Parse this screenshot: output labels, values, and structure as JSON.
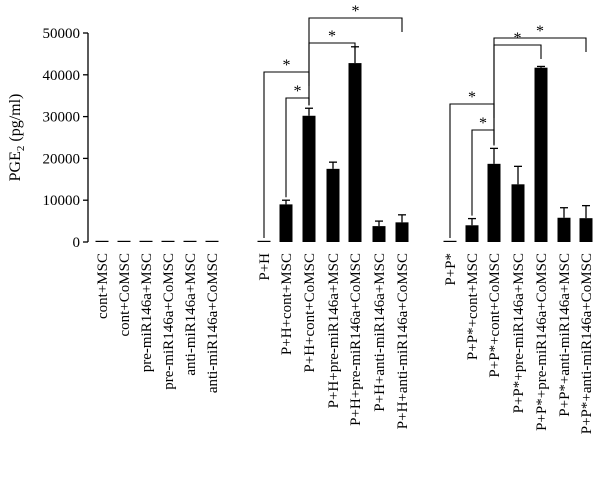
{
  "chart_data": {
    "type": "bar",
    "ylabel": "PGE",
    "ylabel_subscript": "2",
    "ylabel_unit": "(pg/ml)",
    "ylim": [
      0,
      50000
    ],
    "yticks": [
      0,
      10000,
      20000,
      30000,
      40000,
      50000
    ],
    "ytick_labels": [
      "0",
      "10000",
      "20000",
      "30000",
      "40000",
      "50000"
    ],
    "categories": [
      "cont+MSC",
      "cont+CoMSC",
      "pre-miR146a+MSC",
      "pre-miR146a+CoMSC",
      "anti-miR146a+MSC",
      "anti-miR146a+CoMSC",
      "P+H",
      "P+H+cont+MSC",
      "P+H+cont+CoMSC",
      "P+H+pre-miR146a+MSC",
      "P+H+pre-miR146a+CoMSC",
      "P+H+anti-miR146a+MSC",
      "P+H+anti-miR146a+CoMSC",
      "P+P*",
      "P+P*+cont+MSC",
      "P+P*+cont+CoMSC",
      "P+P*+pre-miR146a+MSC",
      "P+P*+pre-miR146a+CoMSC",
      "P+P*+anti-miR146a+MSC",
      "P+P*+anti-miR146a+CoMSC"
    ],
    "values": [
      50,
      50,
      200,
      100,
      50,
      50,
      200,
      9000,
      30200,
      17500,
      42800,
      3800,
      4700,
      100,
      4000,
      18700,
      13800,
      41700,
      5800,
      5700
    ],
    "errors": [
      0,
      0,
      0,
      0,
      0,
      0,
      0,
      1000,
      1800,
      1600,
      3900,
      1200,
      1800,
      0,
      1600,
      3700,
      4300,
      300,
      2400,
      3000
    ],
    "significance": [
      {
        "from": 6,
        "to": 8,
        "label": "*"
      },
      {
        "from": 7,
        "to": 8,
        "label": "*"
      },
      {
        "from": 8,
        "to": 10,
        "label": "*"
      },
      {
        "from": 8,
        "to": 12,
        "label": "*"
      },
      {
        "from": 13,
        "to": 15,
        "label": "*"
      },
      {
        "from": 14,
        "to": 15,
        "label": "*"
      },
      {
        "from": 15,
        "to": 17,
        "label": "*"
      },
      {
        "from": 15,
        "to": 19,
        "label": "*"
      }
    ]
  }
}
